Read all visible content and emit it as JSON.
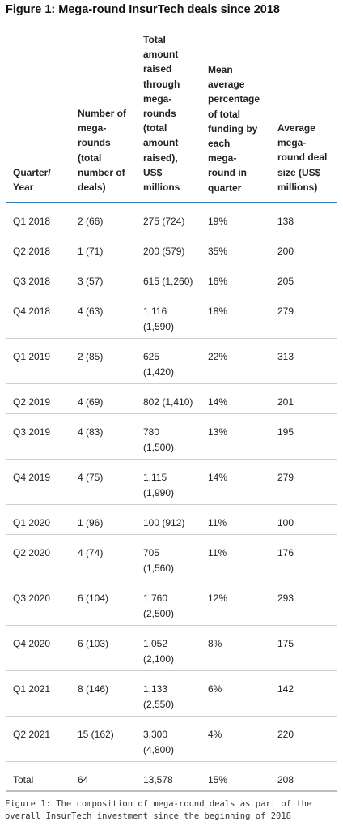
{
  "title": "Figure 1: Mega-round InsurTech deals since 2018",
  "columns": [
    "Quarter/\nYear",
    "Number of\nmega-\nrounds\n(total\nnumber of\ndeals)",
    "Total\namount\nraised\nthrough\nmega-\nrounds\n(total\namount\nraised),\nUS$\nmillions",
    "Mean\naverage\npercentage\nof total\nfunding by\neach\nmega-\nround in\nquarter",
    "Average\nmega-\nround deal\nsize (US$\nmillions)"
  ],
  "rows": [
    {
      "quarter": "Q1 2018",
      "rounds": "2 (66)",
      "amount": "275 (724)",
      "pct": "19%",
      "avg": "138"
    },
    {
      "quarter": "Q2 2018",
      "rounds": "1 (71)",
      "amount": "200 (579)",
      "pct": "35%",
      "avg": "200"
    },
    {
      "quarter": "Q3 2018",
      "rounds": "3 (57)",
      "amount": "615 (1,260)",
      "pct": "16%",
      "avg": "205"
    },
    {
      "quarter": "Q4 2018",
      "rounds": "4 (63)",
      "amount": "1,116\n(1,590)",
      "pct": "18%",
      "avg": "279"
    },
    {
      "quarter": "Q1 2019",
      "rounds": "2 (85)",
      "amount": "625\n(1,420)",
      "pct": "22%",
      "avg": "313"
    },
    {
      "quarter": "Q2 2019",
      "rounds": "4 (69)",
      "amount": "802 (1,410)",
      "pct": "14%",
      "avg": "201"
    },
    {
      "quarter": "Q3 2019",
      "rounds": "4 (83)",
      "amount": "780\n(1,500)",
      "pct": "13%",
      "avg": "195"
    },
    {
      "quarter": "Q4 2019",
      "rounds": "4 (75)",
      "amount": "1,115\n(1,990)",
      "pct": "14%",
      "avg": "279"
    },
    {
      "quarter": "Q1 2020",
      "rounds": "1 (96)",
      "amount": "100 (912)",
      "pct": "11%",
      "avg": "100"
    },
    {
      "quarter": "Q2 2020",
      "rounds": "4 (74)",
      "amount": "705\n(1,560)",
      "pct": "11%",
      "avg": "176"
    },
    {
      "quarter": "Q3 2020",
      "rounds": "6 (104)",
      "amount": "1,760\n(2,500)",
      "pct": "12%",
      "avg": "293"
    },
    {
      "quarter": "Q4 2020",
      "rounds": "6 (103)",
      "amount": "1,052\n(2,100)",
      "pct": "8%",
      "avg": "175"
    },
    {
      "quarter": "Q1 2021",
      "rounds": "8 (146)",
      "amount": "1,133\n(2,550)",
      "pct": "6%",
      "avg": "142"
    },
    {
      "quarter": "Q2 2021",
      "rounds": "15 (162)",
      "amount": "3,300\n(4,800)",
      "pct": "4%",
      "avg": "220"
    },
    {
      "quarter": "Total",
      "rounds": "64",
      "amount": "13,578",
      "pct": "15%",
      "avg": "208"
    }
  ],
  "caption": "Figure 1: The composition of mega-round deals as part of the overall InsurTech investment since the beginning of 2018",
  "colors": {
    "header_rule": "#2f7fc1",
    "row_divider": "#cfcfcf"
  }
}
